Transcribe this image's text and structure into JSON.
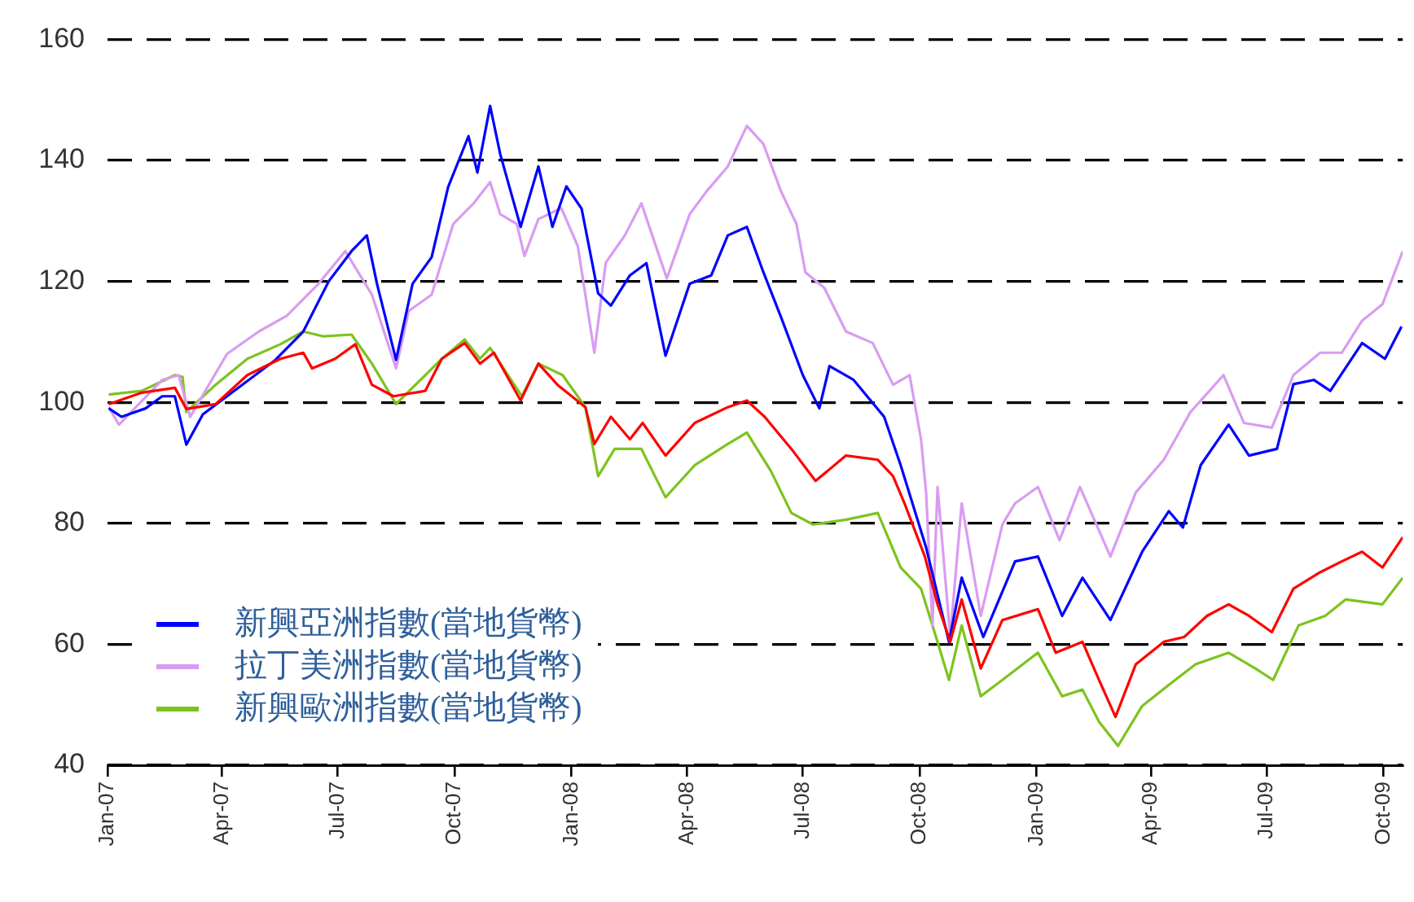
{
  "chart_data": {
    "type": "line",
    "xlim": [
      "2007-01-01",
      "2009-10-16"
    ],
    "ylim": [
      40,
      160
    ],
    "yticks": [
      40,
      60,
      80,
      100,
      120,
      140,
      160
    ],
    "xticks": [
      {
        "value": "2007-01",
        "label": "Jan-07"
      },
      {
        "value": "2007-04",
        "label": "Apr-07"
      },
      {
        "value": "2007-07",
        "label": "Jul-07"
      },
      {
        "value": "2007-10",
        "label": "Oct-07"
      },
      {
        "value": "2008-01",
        "label": "Jan-08"
      },
      {
        "value": "2008-04",
        "label": "Apr-08"
      },
      {
        "value": "2008-07",
        "label": "Jul-08"
      },
      {
        "value": "2008-10",
        "label": "Oct-08"
      },
      {
        "value": "2009-01",
        "label": "Jan-09"
      },
      {
        "value": "2009-04",
        "label": "Apr-09"
      },
      {
        "value": "2009-07",
        "label": "Jul-09"
      },
      {
        "value": "2009-10",
        "label": "Oct-09"
      }
    ],
    "grid": "y",
    "legend": "bottom left",
    "series": [
      {
        "color": "#ff0000",
        "x": [
          "2007-01-02",
          "2007-01-28",
          "2007-02-23",
          "2007-03-04",
          "2007-03-27",
          "2007-04-21",
          "2007-05-17",
          "2007-06-04",
          "2007-06-11",
          "2007-06-29",
          "2007-07-15",
          "2007-07-28",
          "2007-08-14",
          "2007-09-08",
          "2007-09-21",
          "2007-10-09",
          "2007-10-21",
          "2007-11-01",
          "2007-11-22",
          "2007-12-06",
          "2007-12-21",
          "2008-01-12",
          "2008-01-19",
          "2008-02-01",
          "2008-02-16",
          "2008-02-26",
          "2008-03-15",
          "2008-04-07",
          "2008-05-03",
          "2008-05-18",
          "2008-06-01",
          "2008-06-22",
          "2008-07-11",
          "2008-08-04",
          "2008-08-29",
          "2008-09-10",
          "2008-09-19",
          "2008-10-05",
          "2008-10-15",
          "2008-10-25",
          "2008-11-03",
          "2008-11-18",
          "2008-12-05",
          "2009-01-02",
          "2009-01-16",
          "2009-02-06",
          "2009-02-19",
          "2009-03-04",
          "2009-03-20",
          "2009-04-11",
          "2009-04-27",
          "2009-05-15",
          "2009-06-01",
          "2009-06-17",
          "2009-07-05",
          "2009-07-22",
          "2009-08-12",
          "2009-08-29",
          "2009-09-14",
          "2009-09-30",
          "2009-10-16"
        ],
        "values": [
          99.7,
          101.6,
          102.4,
          98.9,
          99.7,
          104.5,
          107.2,
          108.2,
          105.6,
          107.2,
          109.6,
          102.9,
          101,
          101.9,
          107.2,
          109.8,
          106.4,
          108.2,
          100.3,
          106.4,
          102.9,
          99.2,
          93.1,
          97.6,
          93.9,
          96.6,
          91.2,
          96.6,
          99.2,
          100.3,
          97.6,
          92.3,
          87,
          91.2,
          90.5,
          87.8,
          83.3,
          74.5,
          66.6,
          60.4,
          67.4,
          56,
          64,
          65.8,
          58.6,
          60.4,
          54.1,
          48,
          56.7,
          60.4,
          61.2,
          64.7,
          66.6,
          64.7,
          62,
          69.2,
          71.9,
          73.7,
          75.3,
          72.7,
          77.7
        ]
      },
      {
        "name": "新興亞洲指數(當地貨幣)",
        "color": "#0000ff",
        "x": [
          "2007-01-02",
          "2007-01-12",
          "2007-01-31",
          "2007-02-13",
          "2007-02-23",
          "2007-03-04",
          "2007-03-17",
          "2007-04-05",
          "2007-04-24",
          "2007-05-13",
          "2007-06-04",
          "2007-06-24",
          "2007-07-12",
          "2007-07-24",
          "2007-08-01",
          "2007-08-16",
          "2007-08-29",
          "2007-09-13",
          "2007-09-26",
          "2007-10-12",
          "2007-10-19",
          "2007-10-29",
          "2007-11-06",
          "2007-11-22",
          "2007-12-06",
          "2007-12-17",
          "2007-12-28",
          "2008-01-09",
          "2008-01-22",
          "2008-02-01",
          "2008-02-16",
          "2008-02-29",
          "2008-03-15",
          "2008-04-03",
          "2008-04-20",
          "2008-05-03",
          "2008-05-18",
          "2008-05-31",
          "2008-06-14",
          "2008-07-01",
          "2008-07-14",
          "2008-07-22",
          "2008-08-10",
          "2008-09-03",
          "2008-09-16",
          "2008-10-06",
          "2008-10-24",
          "2008-11-03",
          "2008-11-20",
          "2008-12-15",
          "2009-01-02",
          "2009-01-21",
          "2009-02-06",
          "2009-02-28",
          "2009-03-25",
          "2009-04-15",
          "2009-04-26",
          "2009-05-10",
          "2009-06-01",
          "2009-06-17",
          "2009-07-09",
          "2009-07-22",
          "2009-08-07",
          "2009-08-20",
          "2009-09-14",
          "2009-10-02",
          "2009-10-15"
        ],
        "values": [
          99,
          97.6,
          99,
          101,
          101,
          93,
          98,
          101,
          104,
          107,
          111.7,
          120,
          125,
          127.6,
          119.6,
          107,
          119.6,
          124,
          135.6,
          144,
          138,
          149,
          141,
          129,
          139,
          129,
          135.7,
          132,
          118,
          116,
          121,
          123,
          107.7,
          119.6,
          121,
          127.6,
          129,
          121.5,
          114,
          104.5,
          99,
          106,
          103.7,
          97.6,
          89.6,
          76,
          60.4,
          71,
          61.2,
          73.7,
          74.5,
          64.7,
          71,
          64,
          75.3,
          82,
          79.3,
          89.6,
          96.3,
          91.2,
          92.3,
          103,
          103.7,
          101.9,
          109.8,
          107.2,
          112.5
        ]
      },
      {
        "name": "拉丁美洲指數(當地貨幣)",
        "color": "#d99cf2",
        "x": [
          "2007-01-02",
          "2007-01-10",
          "2007-02-13",
          "2007-02-26",
          "2007-03-07",
          "2007-04-05",
          "2007-04-30",
          "2007-05-22",
          "2007-06-16",
          "2007-07-07",
          "2007-07-28",
          "2007-08-16",
          "2007-08-26",
          "2007-09-13",
          "2007-09-30",
          "2007-10-16",
          "2007-10-29",
          "2007-11-06",
          "2007-11-19",
          "2007-11-25",
          "2007-12-06",
          "2007-12-24",
          "2008-01-06",
          "2008-01-19",
          "2008-01-28",
          "2008-02-12",
          "2008-02-25",
          "2008-03-16",
          "2008-04-03",
          "2008-04-16",
          "2008-05-03",
          "2008-05-18",
          "2008-05-31",
          "2008-06-14",
          "2008-06-26",
          "2008-07-03",
          "2008-07-18",
          "2008-08-04",
          "2008-08-25",
          "2008-09-10",
          "2008-09-23",
          "2008-10-02",
          "2008-10-06",
          "2008-10-11",
          "2008-10-15",
          "2008-10-25",
          "2008-11-03",
          "2008-11-18",
          "2008-12-05",
          "2008-12-15",
          "2009-01-02",
          "2009-01-19",
          "2009-02-04",
          "2009-02-28",
          "2009-03-20",
          "2009-04-11",
          "2009-05-02",
          "2009-05-28",
          "2009-06-13",
          "2009-07-05",
          "2009-07-22",
          "2009-08-12",
          "2009-08-29",
          "2009-09-14",
          "2009-09-30",
          "2009-10-16"
        ],
        "values": [
          99.2,
          96.3,
          103.7,
          104.5,
          97.6,
          108,
          111.7,
          114.3,
          119.6,
          125,
          117.8,
          105.6,
          115.1,
          117.8,
          129.5,
          132.9,
          136.4,
          131.1,
          129.5,
          124.2,
          130.3,
          132.1,
          125.8,
          108.2,
          123.1,
          127.6,
          132.9,
          120.5,
          131.1,
          134.8,
          139,
          145.7,
          142.7,
          134.8,
          129.5,
          121.5,
          118.9,
          111.7,
          109.8,
          102.9,
          104.5,
          93.9,
          85.1,
          63.1,
          86,
          61.2,
          83.3,
          64.7,
          79.8,
          83.3,
          86,
          77.2,
          86,
          74.5,
          85.1,
          90.5,
          98.4,
          104.5,
          96.6,
          95.8,
          104.5,
          108.2,
          108.2,
          113.5,
          116.2,
          125
        ]
      },
      {
        "name": "新興歐洲指數(當地貨幣)",
        "color": "#7dc31f",
        "x": [
          "2007-01-02",
          "2007-01-28",
          "2007-02-23",
          "2007-03-01",
          "2007-03-04",
          "2007-03-27",
          "2007-04-21",
          "2007-05-17",
          "2007-06-04",
          "2007-06-20",
          "2007-07-12",
          "2007-07-28",
          "2007-08-16",
          "2007-09-08",
          "2007-09-21",
          "2007-10-09",
          "2007-10-21",
          "2007-10-29",
          "2007-11-23",
          "2007-12-06",
          "2007-12-25",
          "2008-01-12",
          "2008-01-22",
          "2008-02-04",
          "2008-02-25",
          "2008-03-15",
          "2008-04-07",
          "2008-05-03",
          "2008-05-18",
          "2008-06-06",
          "2008-06-22",
          "2008-07-09",
          "2008-08-04",
          "2008-08-29",
          "2008-09-16",
          "2008-10-02",
          "2008-10-15",
          "2008-10-24",
          "2008-11-03",
          "2008-11-18",
          "2008-12-05",
          "2009-01-02",
          "2009-01-21",
          "2009-02-06",
          "2009-02-19",
          "2009-03-06",
          "2009-03-25",
          "2009-04-15",
          "2009-05-06",
          "2009-06-01",
          "2009-06-22",
          "2009-07-06",
          "2009-07-26",
          "2009-08-16",
          "2009-09-01",
          "2009-09-30",
          "2009-10-16"
        ],
        "values": [
          101.3,
          101.9,
          104.5,
          104.2,
          98.4,
          102.9,
          107.2,
          109.6,
          111.7,
          110.9,
          111.2,
          106.4,
          99.7,
          104.5,
          107.2,
          110.4,
          107.2,
          109,
          101,
          106.4,
          104.5,
          99.2,
          87.8,
          92.3,
          92.3,
          84.3,
          89.6,
          93.1,
          95,
          88.6,
          81.7,
          79.8,
          80.6,
          81.7,
          72.7,
          69.2,
          60.4,
          54.1,
          63.1,
          51.4,
          54.1,
          58.6,
          51.4,
          52.5,
          47.2,
          43.2,
          49.8,
          53.3,
          56.7,
          58.6,
          56,
          54.1,
          63.1,
          64.7,
          67.4,
          66.6,
          71
        ]
      }
    ]
  }
}
